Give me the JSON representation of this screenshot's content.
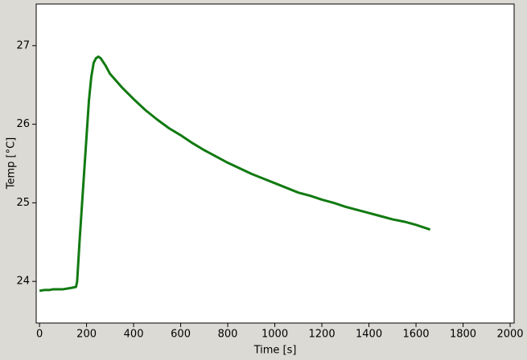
{
  "chart_data": {
    "type": "line",
    "x_label": "Time [s]",
    "y_label": "Temp [°C]",
    "x": [
      0,
      20,
      40,
      60,
      80,
      100,
      120,
      140,
      155,
      160,
      170,
      180,
      190,
      200,
      210,
      220,
      230,
      240,
      250,
      260,
      280,
      300,
      350,
      400,
      450,
      500,
      550,
      600,
      650,
      700,
      750,
      800,
      850,
      900,
      950,
      1000,
      1050,
      1100,
      1150,
      1200,
      1250,
      1300,
      1350,
      1400,
      1450,
      1500,
      1550,
      1600,
      1660
    ],
    "series": [
      {
        "color": "#117a11",
        "values": [
          23.88,
          23.89,
          23.89,
          23.9,
          23.9,
          23.9,
          23.91,
          23.92,
          23.93,
          24.0,
          24.5,
          24.95,
          25.4,
          25.85,
          26.3,
          26.6,
          26.78,
          26.84,
          26.86,
          26.84,
          26.75,
          26.64,
          26.47,
          26.32,
          26.18,
          26.06,
          25.95,
          25.86,
          25.76,
          25.67,
          25.59,
          25.51,
          25.44,
          25.37,
          25.31,
          25.25,
          25.19,
          25.13,
          25.09,
          25.04,
          25.0,
          24.95,
          24.91,
          24.87,
          24.83,
          24.79,
          24.76,
          24.72,
          24.66
        ]
      }
    ],
    "xlim": [
      -14,
      2017
    ],
    "ylim": [
      23.47,
      27.53
    ],
    "xticks": [
      0,
      200,
      400,
      600,
      800,
      1000,
      1200,
      1400,
      1600,
      1800,
      2000
    ],
    "yticks": [
      24,
      25,
      26,
      27
    ]
  }
}
